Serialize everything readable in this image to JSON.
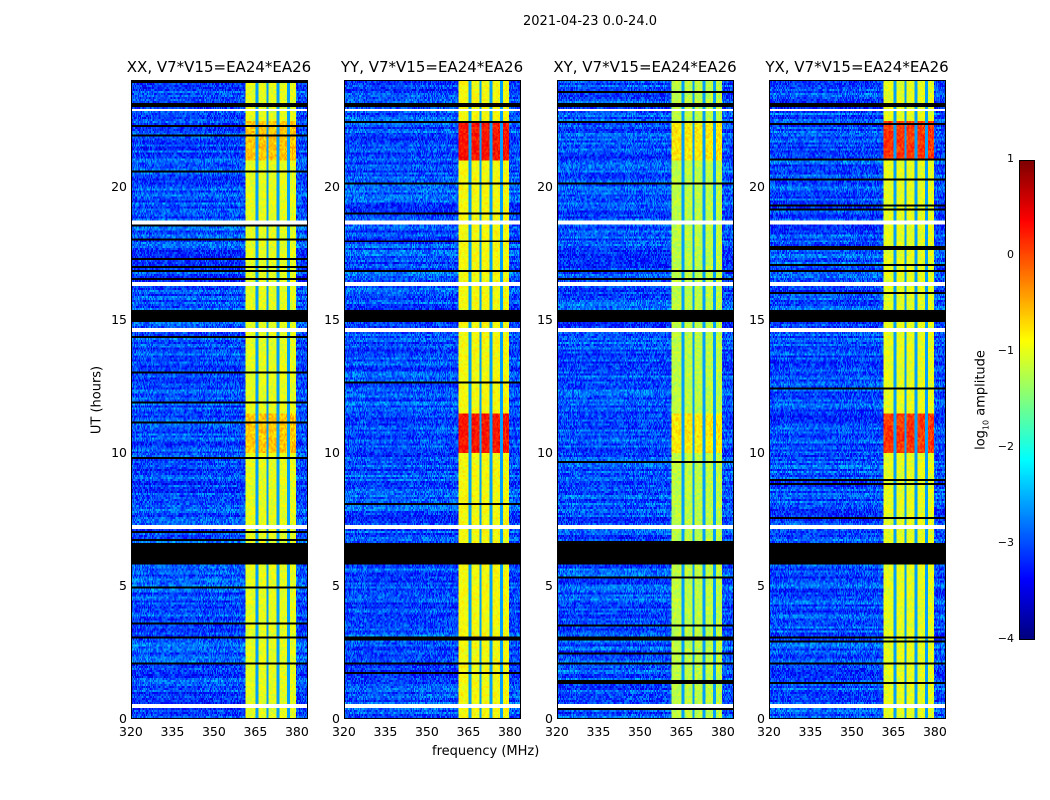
{
  "suptitle": "2021-04-23 0.0-24.0",
  "chart_data": {
    "type": "heatmap",
    "xlabel": "frequency (MHz)",
    "ylabel": "UT (hours)",
    "xlim": [
      320,
      384
    ],
    "ylim": [
      0,
      24
    ],
    "xticks": [
      "320",
      "335",
      "350",
      "365",
      "380"
    ],
    "yticks": [
      "0",
      "5",
      "10",
      "15",
      "20"
    ],
    "panels": [
      {
        "title": "XX, V7*V15=EA24*EA26",
        "band_level": -1.0,
        "peak_level": -0.6
      },
      {
        "title": "YY, V7*V15=EA24*EA26",
        "band_level": -0.9,
        "peak_level": 0.3
      },
      {
        "title": "XY, V7*V15=EA24*EA26",
        "band_level": -1.2,
        "peak_level": -0.8
      },
      {
        "title": "YX, V7*V15=EA24*EA26",
        "band_level": -1.0,
        "peak_level": 0.1
      }
    ],
    "background_level": -3.0,
    "bright_band_mhz": [
      361.5,
      380.0
    ],
    "band_gap_channels_mhz": [
      365.8,
      369.6,
      373.4,
      377.3
    ],
    "peak_hours": [
      [
        10.0,
        11.5
      ],
      [
        21.0,
        22.5
      ]
    ],
    "flagged_hours_black": [
      [
        5.8,
        6.6
      ],
      [
        14.95,
        15.35
      ],
      [
        3.0,
        3.1
      ],
      [
        2.0,
        2.08
      ],
      [
        16.8,
        16.9
      ],
      [
        23.0,
        23.15
      ]
    ],
    "flagged_hours_white": [
      [
        0.35,
        0.5
      ],
      [
        7.1,
        7.3
      ],
      [
        14.55,
        14.7
      ],
      [
        16.25,
        16.45
      ],
      [
        18.6,
        18.75
      ],
      [
        22.85,
        22.95
      ]
    ],
    "colorbar": {
      "label": "log10 amplitude",
      "label_main": "log",
      "label_sub": "10",
      "label_rest": " amplitude",
      "range": [
        -4,
        1
      ],
      "ticks": [
        "1",
        "0",
        "−1",
        "−2",
        "−3",
        "−4"
      ],
      "colormap": "jet"
    }
  }
}
